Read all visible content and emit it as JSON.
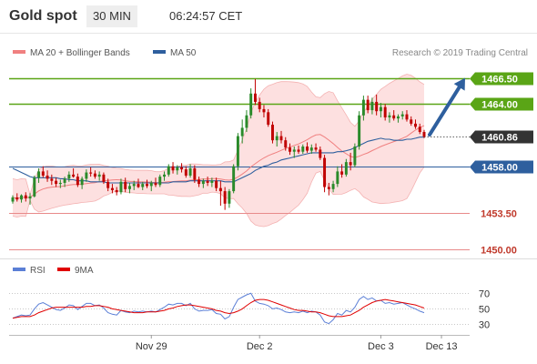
{
  "header": {
    "title": "Gold spot",
    "timeframe": "30 MIN",
    "time": "06:24:57 CET"
  },
  "colors": {
    "ma20_band": "#f08080",
    "band_fill": "#fde0e0",
    "ma50": "#2e5f9e",
    "candle_up": "#2a8a2a",
    "candle_down": "#c00000",
    "resistance": "#5aa516",
    "support": "#2e5f9e",
    "target_level": "#e88a8a",
    "current_price": "#333333",
    "arrow": "#2e5f9e",
    "rsi": "#5b7fd6",
    "rsi_ma": "#e00000"
  },
  "chart_data": [
    {
      "type": "candlestick",
      "title": "Gold spot",
      "timeframe": "30 MIN",
      "legend": [
        {
          "key": "ma20",
          "label": "MA 20 + Bollinger Bands",
          "color": "#f08080"
        },
        {
          "key": "ma50",
          "label": "MA 50",
          "color": "#2e5f9e"
        }
      ],
      "credit": "Research © 2019 Trading Central",
      "ylim": [
        1449.3,
        1469.1
      ],
      "levels": [
        {
          "label": "1466.50",
          "value": 1466.5,
          "style": "resistance"
        },
        {
          "label": "1464.00",
          "value": 1464.0,
          "style": "resistance"
        },
        {
          "label": "1460.86",
          "value": 1460.86,
          "style": "current"
        },
        {
          "label": "1458.00",
          "value": 1458.0,
          "style": "support"
        },
        {
          "label": "1453.50",
          "value": 1453.5,
          "style": "target"
        },
        {
          "label": "1450.00",
          "value": 1450.0,
          "style": "target"
        }
      ],
      "x_ticks": [
        {
          "label": "Nov 29",
          "index": 32
        },
        {
          "label": "Dec 2",
          "index": 57
        },
        {
          "label": "Dec 3",
          "index": 85
        },
        {
          "label": "Dec 13",
          "index": 99
        }
      ],
      "arrow_target": 1466.5,
      "candles": [
        [
          1454.6,
          1455.2,
          1454.4,
          1455.0
        ],
        [
          1455.0,
          1455.4,
          1454.6,
          1454.8
        ],
        [
          1454.8,
          1455.3,
          1454.5,
          1455.2
        ],
        [
          1455.2,
          1455.5,
          1454.6,
          1454.9
        ],
        [
          1454.9,
          1455.4,
          1454.3,
          1455.1
        ],
        [
          1455.1,
          1457.1,
          1455.0,
          1456.9
        ],
        [
          1456.9,
          1457.8,
          1456.4,
          1457.5
        ],
        [
          1457.5,
          1458.0,
          1456.9,
          1457.1
        ],
        [
          1457.1,
          1457.6,
          1456.5,
          1456.8
        ],
        [
          1456.8,
          1457.2,
          1456.2,
          1456.6
        ],
        [
          1456.6,
          1456.9,
          1456.0,
          1456.3
        ],
        [
          1456.3,
          1456.7,
          1455.9,
          1456.4
        ],
        [
          1456.4,
          1457.0,
          1456.0,
          1456.8
        ],
        [
          1456.8,
          1457.5,
          1456.5,
          1457.2
        ],
        [
          1457.2,
          1457.8,
          1456.9,
          1457.0
        ],
        [
          1457.0,
          1457.3,
          1456.0,
          1456.2
        ],
        [
          1456.2,
          1457.0,
          1455.8,
          1456.8
        ],
        [
          1456.8,
          1457.7,
          1456.5,
          1457.4
        ],
        [
          1457.4,
          1457.9,
          1457.0,
          1457.3
        ],
        [
          1457.3,
          1457.6,
          1456.8,
          1457.0
        ],
        [
          1457.0,
          1457.5,
          1456.6,
          1457.2
        ],
        [
          1457.2,
          1457.4,
          1456.3,
          1456.5
        ],
        [
          1456.5,
          1456.8,
          1455.6,
          1455.9
        ],
        [
          1455.9,
          1456.3,
          1455.4,
          1455.7
        ],
        [
          1455.7,
          1456.0,
          1455.2,
          1455.5
        ],
        [
          1455.5,
          1456.8,
          1455.3,
          1456.5
        ],
        [
          1456.5,
          1456.9,
          1455.5,
          1455.8
        ],
        [
          1455.8,
          1456.4,
          1455.4,
          1456.1
        ],
        [
          1456.1,
          1456.6,
          1455.7,
          1456.3
        ],
        [
          1456.3,
          1456.8,
          1455.9,
          1456.0
        ],
        [
          1456.0,
          1456.5,
          1455.7,
          1456.3
        ],
        [
          1456.3,
          1456.7,
          1455.9,
          1456.1
        ],
        [
          1456.1,
          1456.6,
          1455.6,
          1456.4
        ],
        [
          1456.4,
          1456.9,
          1456.0,
          1456.2
        ],
        [
          1456.2,
          1457.2,
          1456.0,
          1457.0
        ],
        [
          1457.0,
          1457.5,
          1456.6,
          1457.2
        ],
        [
          1457.2,
          1458.2,
          1457.0,
          1458.0
        ],
        [
          1458.0,
          1458.4,
          1457.3,
          1457.6
        ],
        [
          1457.6,
          1458.1,
          1457.2,
          1457.9
        ],
        [
          1457.9,
          1458.3,
          1457.4,
          1457.7
        ],
        [
          1457.7,
          1458.0,
          1456.9,
          1457.1
        ],
        [
          1457.1,
          1458.2,
          1456.9,
          1457.8
        ],
        [
          1457.8,
          1458.1,
          1456.4,
          1456.7
        ],
        [
          1456.7,
          1457.0,
          1456.0,
          1456.3
        ],
        [
          1456.3,
          1456.8,
          1455.9,
          1456.6
        ],
        [
          1456.6,
          1457.0,
          1456.1,
          1456.4
        ],
        [
          1456.4,
          1456.9,
          1456.0,
          1456.6
        ],
        [
          1456.6,
          1456.9,
          1455.6,
          1455.9
        ],
        [
          1455.9,
          1456.6,
          1454.2,
          1455.6
        ],
        [
          1455.6,
          1456.0,
          1453.8,
          1454.4
        ],
        [
          1454.4,
          1455.8,
          1454.0,
          1455.6
        ],
        [
          1455.6,
          1458.2,
          1455.4,
          1458.0
        ],
        [
          1458.0,
          1461.2,
          1457.6,
          1460.9
        ],
        [
          1460.9,
          1462.5,
          1460.2,
          1461.7
        ],
        [
          1461.7,
          1463.4,
          1461.3,
          1462.9
        ],
        [
          1462.9,
          1465.5,
          1462.6,
          1465.0
        ],
        [
          1465.0,
          1466.4,
          1463.9,
          1464.2
        ],
        [
          1464.2,
          1464.6,
          1463.2,
          1463.5
        ],
        [
          1463.5,
          1463.9,
          1462.7,
          1463.2
        ],
        [
          1463.2,
          1463.5,
          1461.8,
          1462.0
        ],
        [
          1462.0,
          1462.3,
          1460.2,
          1460.5
        ],
        [
          1460.5,
          1461.3,
          1459.9,
          1460.9
        ],
        [
          1460.9,
          1461.4,
          1460.2,
          1460.5
        ],
        [
          1460.5,
          1460.8,
          1459.5,
          1459.8
        ],
        [
          1459.8,
          1460.2,
          1459.1,
          1459.4
        ],
        [
          1459.4,
          1459.9,
          1458.8,
          1459.6
        ],
        [
          1459.6,
          1460.0,
          1459.2,
          1459.4
        ],
        [
          1459.4,
          1460.1,
          1459.2,
          1459.9
        ],
        [
          1459.9,
          1460.3,
          1459.3,
          1459.5
        ],
        [
          1459.5,
          1460.1,
          1459.2,
          1459.8
        ],
        [
          1459.8,
          1460.2,
          1459.4,
          1459.6
        ],
        [
          1459.6,
          1459.9,
          1458.6,
          1458.8
        ],
        [
          1458.8,
          1459.1,
          1455.5,
          1456.0
        ],
        [
          1456.0,
          1456.4,
          1455.2,
          1455.8
        ],
        [
          1455.8,
          1456.6,
          1455.5,
          1456.3
        ],
        [
          1456.3,
          1458.0,
          1456.0,
          1457.5
        ],
        [
          1457.5,
          1458.2,
          1456.9,
          1457.2
        ],
        [
          1457.2,
          1458.7,
          1457.0,
          1458.4
        ],
        [
          1458.4,
          1459.3,
          1457.6,
          1458.1
        ],
        [
          1458.1,
          1460.2,
          1457.9,
          1459.9
        ],
        [
          1459.9,
          1463.3,
          1459.6,
          1462.9
        ],
        [
          1462.9,
          1464.8,
          1462.4,
          1464.4
        ],
        [
          1464.4,
          1464.8,
          1463.1,
          1463.4
        ],
        [
          1463.4,
          1464.6,
          1463.0,
          1464.2
        ],
        [
          1464.2,
          1464.9,
          1462.9,
          1463.3
        ],
        [
          1463.3,
          1464.1,
          1462.7,
          1463.7
        ],
        [
          1463.7,
          1464.0,
          1462.4,
          1462.7
        ],
        [
          1462.7,
          1463.2,
          1462.2,
          1462.9
        ],
        [
          1462.9,
          1463.4,
          1462.4,
          1462.6
        ],
        [
          1462.6,
          1463.0,
          1462.2,
          1462.8
        ],
        [
          1462.8,
          1463.3,
          1462.5,
          1463.0
        ],
        [
          1463.0,
          1463.4,
          1462.3,
          1462.5
        ],
        [
          1462.5,
          1462.8,
          1461.9,
          1462.1
        ],
        [
          1462.1,
          1462.5,
          1461.6,
          1461.8
        ],
        [
          1461.8,
          1462.1,
          1461.1,
          1461.3
        ],
        [
          1461.3,
          1461.5,
          1460.7,
          1460.86
        ]
      ],
      "ma50": [
        1457.8,
        1457.6,
        1457.4,
        1457.2,
        1457.0,
        1456.9,
        1456.9,
        1456.9,
        1456.9,
        1456.9,
        1456.9,
        1456.8,
        1456.8,
        1456.7,
        1456.7,
        1456.6,
        1456.6,
        1456.6,
        1456.5,
        1456.5,
        1456.5,
        1456.5,
        1456.4,
        1456.4,
        1456.4,
        1456.4,
        1456.4,
        1456.4,
        1456.4,
        1456.4,
        1456.4,
        1456.4,
        1456.4,
        1456.4,
        1456.4,
        1456.4,
        1456.4,
        1456.5,
        1456.5,
        1456.5,
        1456.5,
        1456.6,
        1456.6,
        1456.6,
        1456.6,
        1456.6,
        1456.6,
        1456.6,
        1456.6,
        1456.5,
        1456.5,
        1456.5,
        1456.7,
        1456.9,
        1457.1,
        1457.3,
        1457.6,
        1457.8,
        1458.0,
        1458.1,
        1458.3,
        1458.4,
        1458.6,
        1458.7,
        1458.8,
        1458.9,
        1459.0,
        1459.1,
        1459.2,
        1459.3,
        1459.3,
        1459.3,
        1459.3,
        1459.3,
        1459.3,
        1459.4,
        1459.4,
        1459.5,
        1459.6,
        1459.8,
        1460.0,
        1460.2,
        1460.4,
        1460.5,
        1460.6,
        1460.7,
        1460.6,
        1460.6,
        1460.5,
        1460.5,
        1460.5,
        1460.6,
        1460.6,
        1460.7,
        1460.8,
        1460.8
      ]
    },
    {
      "type": "line",
      "legend": [
        {
          "key": "rsi",
          "label": "RSI",
          "color": "#5b7fd6"
        },
        {
          "key": "rsi_ma",
          "label": "9MA",
          "color": "#e00000"
        }
      ],
      "ylim": [
        20,
        82
      ],
      "y_ticks": [
        30,
        50,
        70
      ],
      "rsi": [
        38,
        40,
        42,
        41,
        42,
        50,
        56,
        58,
        55,
        52,
        49,
        48,
        51,
        55,
        54,
        49,
        53,
        57,
        57,
        54,
        55,
        51,
        45,
        43,
        42,
        48,
        46,
        45,
        47,
        46,
        47,
        46,
        47,
        46,
        49,
        52,
        56,
        55,
        57,
        57,
        54,
        57,
        50,
        47,
        48,
        48,
        49,
        44,
        43,
        37,
        40,
        52,
        62,
        65,
        68,
        70,
        60,
        57,
        56,
        54,
        50,
        51,
        49,
        46,
        45,
        46,
        45,
        47,
        45,
        47,
        46,
        42,
        33,
        31,
        36,
        44,
        42,
        48,
        46,
        52,
        62,
        66,
        62,
        64,
        60,
        61,
        57,
        58,
        56,
        57,
        58,
        55,
        52,
        50,
        47,
        45
      ],
      "rsi_ma": [
        38,
        39,
        40,
        40,
        40,
        42,
        45,
        47,
        49,
        51,
        52,
        52,
        52,
        52,
        52,
        52,
        52,
        53,
        53,
        54,
        54,
        53,
        52,
        50,
        49,
        48,
        47,
        46,
        45,
        45,
        45,
        46,
        46,
        46,
        47,
        48,
        50,
        51,
        53,
        54,
        55,
        55,
        54,
        53,
        52,
        51,
        50,
        48,
        47,
        45,
        44,
        45,
        47,
        50,
        54,
        58,
        61,
        62,
        62,
        61,
        59,
        57,
        55,
        53,
        51,
        49,
        48,
        48,
        47,
        46,
        46,
        45,
        43,
        41,
        40,
        40,
        40,
        41,
        42,
        45,
        48,
        52,
        55,
        58,
        60,
        61,
        62,
        61,
        60,
        59,
        58,
        57,
        56,
        55,
        53,
        51
      ]
    }
  ]
}
